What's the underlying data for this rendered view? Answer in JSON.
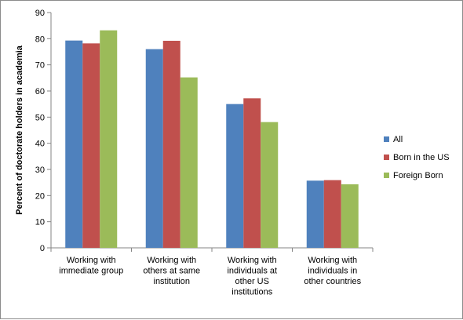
{
  "chart_data": {
    "type": "bar",
    "ylabel": "Percent of doctorate holders in academia",
    "ylim": [
      0,
      90
    ],
    "ytick_step": 10,
    "grid": false,
    "legend_position": "right",
    "categories": [
      [
        "Working with",
        "immediate group"
      ],
      [
        "Working with",
        "others at same",
        "institution"
      ],
      [
        "Working with",
        "individuals at",
        "other US",
        "institutions"
      ],
      [
        "Working with",
        "individuals in",
        "other countries"
      ]
    ],
    "series": [
      {
        "name": "All",
        "color": "#4f81bd",
        "values": [
          79.3,
          76.0,
          55.0,
          25.7
        ]
      },
      {
        "name": "Born in the US",
        "color": "#c0504d",
        "values": [
          78.2,
          79.2,
          57.2,
          25.9
        ]
      },
      {
        "name": "Foreign Born",
        "color": "#9bbb59",
        "values": [
          83.2,
          65.2,
          48.1,
          24.3
        ]
      }
    ]
  }
}
